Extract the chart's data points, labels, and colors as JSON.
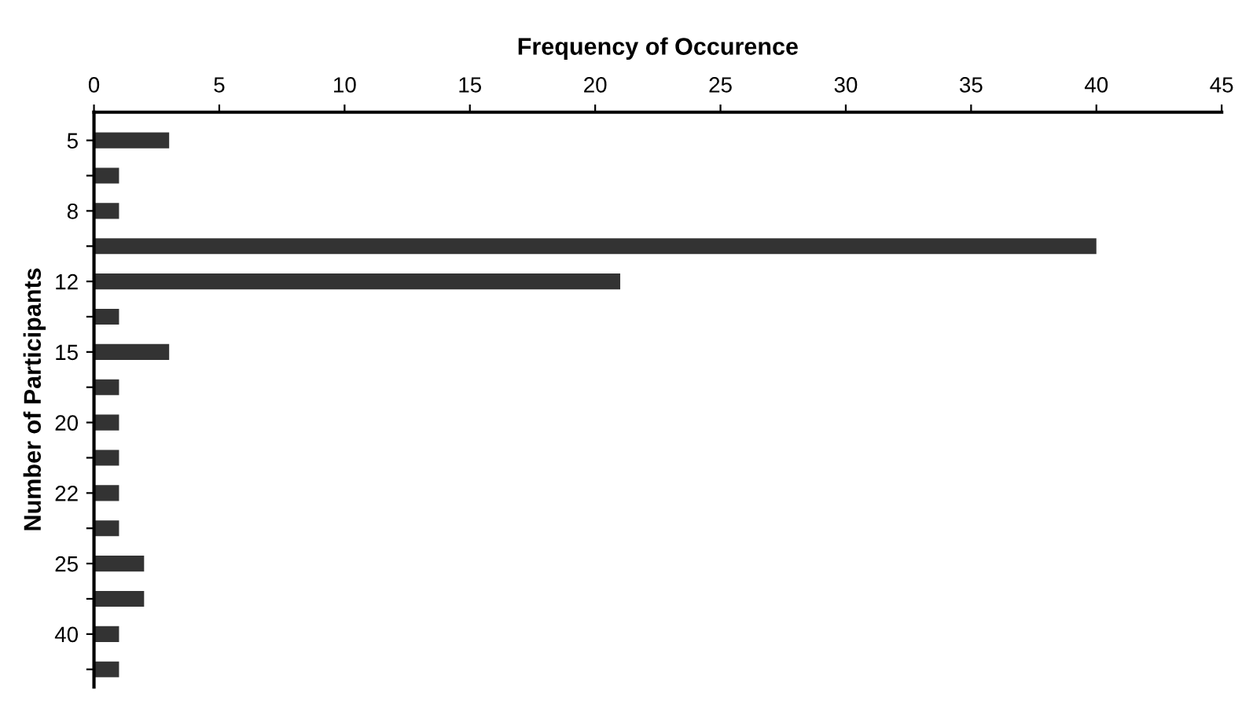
{
  "chart_data": {
    "type": "bar",
    "orientation": "horizontal",
    "xlabel": "Frequency of Occurence",
    "ylabel": "Number of Participants",
    "categories": [
      "5",
      null,
      "8",
      null,
      "12",
      null,
      "15",
      null,
      "20",
      null,
      "22",
      null,
      "25",
      null,
      "40",
      null
    ],
    "values": [
      3,
      1,
      1,
      40,
      21,
      1,
      3,
      1,
      1,
      1,
      1,
      1,
      2,
      2,
      1,
      1
    ],
    "color": "#333333",
    "xlim": [
      0,
      45
    ],
    "xticks": [
      0,
      5,
      10,
      15,
      20,
      25,
      30,
      35,
      40,
      45
    ],
    "grid": false,
    "legend": false
  }
}
